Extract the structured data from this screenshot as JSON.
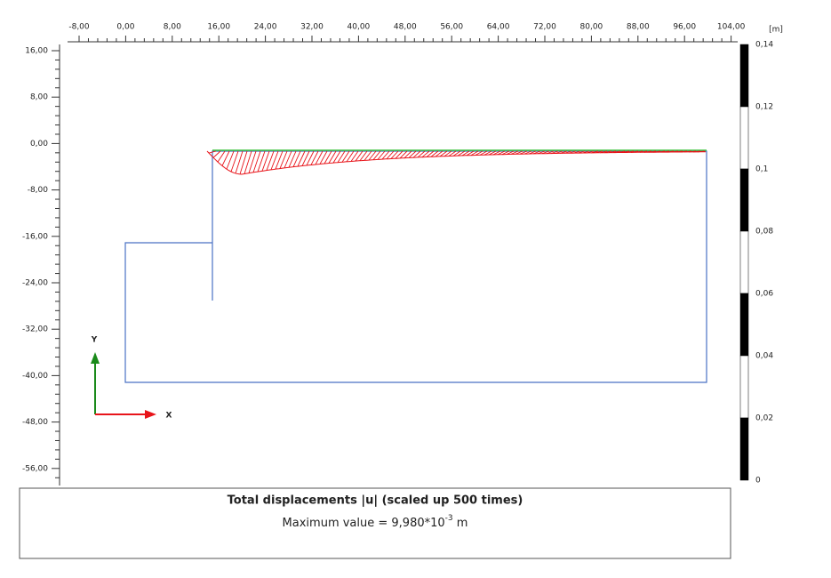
{
  "plot": {
    "unit": "[m]",
    "top_axis_ticks": [
      "-8,00",
      "0,00",
      "8,00",
      "16,00",
      "24,00",
      "32,00",
      "40,00",
      "48,00",
      "56,00",
      "64,00",
      "72,00",
      "80,00",
      "88,00",
      "96,00",
      "104,00"
    ],
    "left_axis_ticks": [
      "16,00",
      "8,00",
      "0,00",
      "-8,00",
      "-16,00",
      "-24,00",
      "-32,00",
      "-40,00",
      "-48,00",
      "-56,00"
    ],
    "scale_labels": [
      "0,14",
      "0,12",
      "0,1",
      "0,08",
      "0,06",
      "0,04",
      "0,02",
      "0"
    ],
    "y_axis_label": "Y",
    "x_axis_label": "X"
  },
  "caption": {
    "title": "Total displacements |u| (scaled up 500 times)",
    "value_text": "Maximum value = 9,980*10",
    "value_exponent": "-3",
    "value_unit": " m"
  }
}
